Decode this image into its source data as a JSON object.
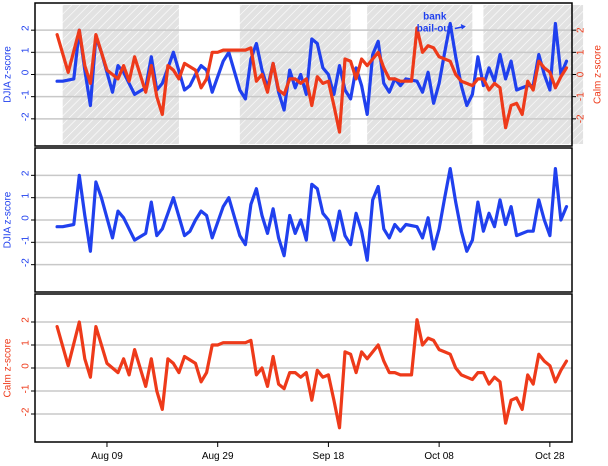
{
  "colors": {
    "djia": "#2040ee",
    "calm": "#ee3a1a",
    "shade": "#e2e2e2",
    "grid": "#c8c8c8",
    "frame": "#000000"
  },
  "shaded_periods": [
    {
      "start": "2008-08-01",
      "end": "2008-08-22"
    },
    {
      "start": "2008-09-02",
      "end": "2008-09-22"
    },
    {
      "start": "2008-09-25",
      "end": "2008-10-14"
    },
    {
      "start": "2008-10-16",
      "end": "2008-11-03"
    }
  ],
  "x_ticks": [
    {
      "date": "2008-08-09",
      "label": "Aug 09"
    },
    {
      "date": "2008-08-29",
      "label": "Aug 29"
    },
    {
      "date": "2008-09-18",
      "label": "Sep 18"
    },
    {
      "date": "2008-10-08",
      "label": "Oct 08"
    },
    {
      "date": "2008-10-28",
      "label": "Oct 28"
    }
  ],
  "chart_data": [
    {
      "type": "line",
      "panel": "combined",
      "xlim": [
        "2008-07-27",
        "2008-11-01"
      ],
      "ylim_left": [
        -3,
        3
      ],
      "ylim_right": [
        -3,
        3
      ],
      "ylabel_left": "DJIA z-score",
      "ylabel_right": "Calm z-score",
      "annotation": {
        "line1": "bank",
        "line2": "bail-out",
        "date": "2008-10-13",
        "value": 2.3
      },
      "series": [
        {
          "name": "DJIA",
          "axis": "left",
          "x": [
            "2008-07-31",
            "2008-08-01",
            "2008-08-03",
            "2008-08-04",
            "2008-08-05",
            "2008-08-06",
            "2008-08-07",
            "2008-08-08",
            "2008-08-10",
            "2008-08-11",
            "2008-08-12",
            "2008-08-13",
            "2008-08-14",
            "2008-08-16",
            "2008-08-17",
            "2008-08-18",
            "2008-08-19",
            "2008-08-20",
            "2008-08-21",
            "2008-08-23",
            "2008-08-24",
            "2008-08-25",
            "2008-08-26",
            "2008-08-27",
            "2008-08-28",
            "2008-08-30",
            "2008-08-31",
            "2008-09-02",
            "2008-09-03",
            "2008-09-04",
            "2008-09-05",
            "2008-09-06",
            "2008-09-07",
            "2008-09-08",
            "2008-09-09",
            "2008-09-10",
            "2008-09-11",
            "2008-09-12",
            "2008-09-13",
            "2008-09-14",
            "2008-09-15",
            "2008-09-16",
            "2008-09-17",
            "2008-09-18",
            "2008-09-19",
            "2008-09-20",
            "2008-09-21",
            "2008-09-22",
            "2008-09-23",
            "2008-09-24",
            "2008-09-25",
            "2008-09-26",
            "2008-09-27",
            "2008-09-28",
            "2008-09-29",
            "2008-09-30",
            "2008-10-01",
            "2008-10-02",
            "2008-10-04",
            "2008-10-05",
            "2008-10-06",
            "2008-10-07",
            "2008-10-08",
            "2008-10-09",
            "2008-10-10",
            "2008-10-11",
            "2008-10-12",
            "2008-10-13",
            "2008-10-14",
            "2008-10-15",
            "2008-10-16",
            "2008-10-17",
            "2008-10-18",
            "2008-10-19",
            "2008-10-20",
            "2008-10-21",
            "2008-10-22",
            "2008-10-23",
            "2008-10-24",
            "2008-10-25",
            "2008-10-26",
            "2008-10-27",
            "2008-10-28",
            "2008-10-29",
            "2008-10-30",
            "2008-10-31"
          ],
          "values": [
            -0.3,
            -0.3,
            -0.2,
            2.0,
            0.2,
            -1.4,
            1.7,
            1.0,
            -0.8,
            0.4,
            0.1,
            -0.4,
            -0.9,
            -0.6,
            0.8,
            -0.7,
            -0.4,
            0.3,
            1.0,
            -0.7,
            -0.5,
            0.0,
            0.4,
            0.2,
            -0.8,
            0.6,
            1.0,
            -0.7,
            -1.1,
            0.7,
            1.4,
            0.2,
            -0.6,
            0.5,
            -0.8,
            -1.6,
            0.2,
            -0.6,
            0.0,
            -0.9,
            1.6,
            1.4,
            0.3,
            0.0,
            -0.9,
            0.4,
            -0.7,
            -1.1,
            0.3,
            -0.5,
            -1.8,
            0.9,
            1.5,
            -0.4,
            -0.8,
            -0.2,
            -0.5,
            -0.2,
            -0.3,
            -0.8,
            0.1,
            -1.3,
            -0.4,
            1.0,
            2.3,
            0.8,
            -0.5,
            -1.4,
            -0.9,
            0.8,
            -0.5,
            0.3,
            -0.3,
            0.9,
            -0.2,
            0.6,
            -0.7,
            -0.6,
            -0.5,
            -0.5,
            0.9,
            0.0,
            -0.7,
            2.3,
            0.0,
            0.6
          ]
        },
        {
          "name": "Calm",
          "axis": "right",
          "x": [
            "2008-07-31",
            "2008-08-02",
            "2008-08-04",
            "2008-08-05",
            "2008-08-06",
            "2008-08-07",
            "2008-08-09",
            "2008-08-11",
            "2008-08-12",
            "2008-08-13",
            "2008-08-14",
            "2008-08-16",
            "2008-08-17",
            "2008-08-18",
            "2008-08-19",
            "2008-08-20",
            "2008-08-21",
            "2008-08-22",
            "2008-08-23",
            "2008-08-25",
            "2008-08-26",
            "2008-08-27",
            "2008-08-28",
            "2008-08-29",
            "2008-08-30",
            "2008-08-31",
            "2008-09-02",
            "2008-09-03",
            "2008-09-04",
            "2008-09-05",
            "2008-09-06",
            "2008-09-07",
            "2008-09-08",
            "2008-09-09",
            "2008-09-10",
            "2008-09-11",
            "2008-09-12",
            "2008-09-13",
            "2008-09-14",
            "2008-09-15",
            "2008-09-16",
            "2008-09-17",
            "2008-09-18",
            "2008-09-19",
            "2008-09-20",
            "2008-09-21",
            "2008-09-22",
            "2008-09-23",
            "2008-09-24",
            "2008-09-25",
            "2008-09-26",
            "2008-09-27",
            "2008-09-28",
            "2008-09-29",
            "2008-09-30",
            "2008-10-01",
            "2008-10-02",
            "2008-10-03",
            "2008-10-04",
            "2008-10-05",
            "2008-10-06",
            "2008-10-07",
            "2008-10-08",
            "2008-10-09",
            "2008-10-10",
            "2008-10-11",
            "2008-10-12",
            "2008-10-13",
            "2008-10-14",
            "2008-10-15",
            "2008-10-16",
            "2008-10-17",
            "2008-10-18",
            "2008-10-19",
            "2008-10-20",
            "2008-10-21",
            "2008-10-22",
            "2008-10-23",
            "2008-10-24",
            "2008-10-25",
            "2008-10-26",
            "2008-10-27",
            "2008-10-28",
            "2008-10-29",
            "2008-10-30",
            "2008-10-31"
          ],
          "values": [
            1.8,
            0.1,
            2.0,
            0.4,
            -0.4,
            1.8,
            0.2,
            -0.2,
            0.4,
            -0.3,
            0.8,
            -0.8,
            0.4,
            -1.0,
            -1.8,
            0.4,
            0.2,
            -0.2,
            0.5,
            0.2,
            -0.6,
            -0.2,
            1.0,
            1.0,
            1.1,
            1.1,
            1.1,
            1.1,
            1.2,
            -0.3,
            0.0,
            -0.8,
            0.5,
            -0.7,
            -0.9,
            -0.2,
            -0.2,
            -0.4,
            -0.2,
            -1.4,
            -0.1,
            -0.4,
            -0.3,
            -1.4,
            -2.6,
            0.7,
            0.6,
            -0.2,
            0.7,
            0.4,
            0.7,
            1.0,
            0.3,
            -0.2,
            -0.2,
            -0.3,
            -0.3,
            -0.3,
            2.1,
            1.0,
            1.3,
            1.2,
            0.8,
            0.7,
            0.6,
            0.0,
            -0.3,
            -0.4,
            -0.5,
            -0.2,
            -0.2,
            -0.7,
            -0.4,
            -0.6,
            -2.4,
            -1.4,
            -1.3,
            -1.8,
            -0.3,
            -0.7,
            0.6,
            0.3,
            0.1,
            -0.6,
            -0.1,
            0.3
          ]
        }
      ]
    },
    {
      "type": "line",
      "panel": "djia",
      "xlim": [
        "2008-07-27",
        "2008-11-01"
      ],
      "ylim": [
        -3,
        3
      ],
      "ylabel": "DJIA z-score",
      "series_ref": "DJIA"
    },
    {
      "type": "line",
      "panel": "calm",
      "xlim": [
        "2008-07-27",
        "2008-11-01"
      ],
      "ylim": [
        -3,
        3
      ],
      "ylabel": "Calm z-score",
      "series_ref": "Calm"
    }
  ]
}
